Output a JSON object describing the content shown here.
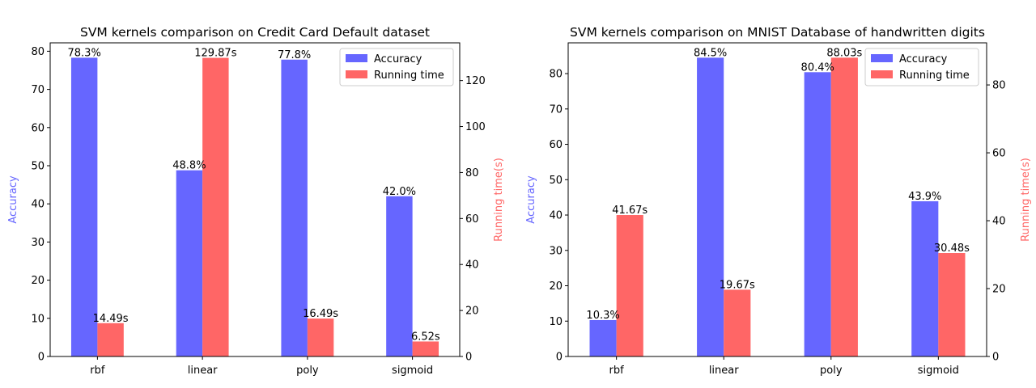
{
  "colors": {
    "accuracy": "#6666ff",
    "running_time": "#ff6666",
    "axis": "#000000"
  },
  "chart_data": [
    {
      "type": "bar",
      "title": "SVM kernels comparison on Credit Card Default dataset",
      "categories": [
        "rbf",
        "linear",
        "poly",
        "sigmoid"
      ],
      "ylabel_left": "Accuracy",
      "ylabel_right": "Running time(s)",
      "ylim_left": [
        0,
        82.2
      ],
      "ylim_right": [
        0,
        136.4
      ],
      "yticks_left": [
        0,
        10,
        20,
        30,
        40,
        50,
        60,
        70,
        80
      ],
      "yticks_right": [
        0,
        20,
        40,
        60,
        80,
        100,
        120
      ],
      "legend_position": "top-right",
      "series": [
        {
          "name": "Accuracy",
          "axis": "left",
          "color": "#6666ff",
          "values": [
            78.3,
            48.8,
            77.8,
            42.0
          ],
          "labels": [
            "78.3%",
            "48.8%",
            "77.8%",
            "42.0%"
          ]
        },
        {
          "name": "Running time",
          "axis": "right",
          "color": "#ff6666",
          "values": [
            14.49,
            129.87,
            16.49,
            6.52
          ],
          "labels": [
            "14.49s",
            "129.87s",
            "16.49s",
            "6.52s"
          ]
        }
      ]
    },
    {
      "type": "bar",
      "title": "SVM kernels comparison on MNIST Database of handwritten digits",
      "categories": [
        "rbf",
        "linear",
        "poly",
        "sigmoid"
      ],
      "ylabel_left": "Accuracy",
      "ylabel_right": "Running time(s)",
      "ylim_left": [
        0,
        88.7
      ],
      "ylim_right": [
        0,
        92.4
      ],
      "yticks_left": [
        0,
        10,
        20,
        30,
        40,
        50,
        60,
        70,
        80
      ],
      "yticks_right": [
        0,
        20,
        40,
        60,
        80
      ],
      "legend_position": "top-right",
      "series": [
        {
          "name": "Accuracy",
          "axis": "left",
          "color": "#6666ff",
          "values": [
            10.3,
            84.5,
            80.4,
            43.9
          ],
          "labels": [
            "10.3%",
            "84.5%",
            "80.4%",
            "43.9%"
          ]
        },
        {
          "name": "Running time",
          "axis": "right",
          "color": "#ff6666",
          "values": [
            41.67,
            19.67,
            88.03,
            30.48
          ],
          "labels": [
            "41.67s",
            "19.67s",
            "88.03s",
            "30.48s"
          ]
        }
      ]
    }
  ]
}
